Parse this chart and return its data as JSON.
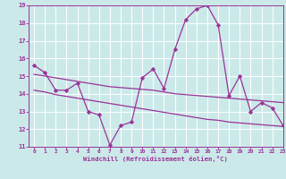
{
  "xlabel": "Windchill (Refroidissement éolien,°C)",
  "x": [
    0,
    1,
    2,
    3,
    4,
    5,
    6,
    7,
    8,
    9,
    10,
    11,
    12,
    13,
    14,
    15,
    16,
    17,
    18,
    19,
    20,
    21,
    22,
    23
  ],
  "line1": [
    15.6,
    15.2,
    14.2,
    14.2,
    14.6,
    13.0,
    12.8,
    11.1,
    12.2,
    12.4,
    14.9,
    15.4,
    14.3,
    16.5,
    18.2,
    18.8,
    19.0,
    17.9,
    13.9,
    15.0,
    13.0,
    13.5,
    13.2,
    12.2
  ],
  "line2": [
    15.1,
    15.0,
    14.9,
    14.8,
    14.7,
    14.6,
    14.5,
    14.4,
    14.35,
    14.3,
    14.25,
    14.2,
    14.1,
    14.0,
    13.95,
    13.9,
    13.85,
    13.8,
    13.75,
    13.7,
    13.65,
    13.6,
    13.55,
    13.5
  ],
  "line3": [
    14.2,
    14.1,
    13.95,
    13.85,
    13.75,
    13.65,
    13.55,
    13.45,
    13.35,
    13.25,
    13.15,
    13.05,
    12.95,
    12.85,
    12.75,
    12.65,
    12.55,
    12.5,
    12.4,
    12.35,
    12.3,
    12.25,
    12.2,
    12.15
  ],
  "ylim": [
    11,
    19
  ],
  "xlim": [
    -0.5,
    23
  ],
  "yticks": [
    11,
    12,
    13,
    14,
    15,
    16,
    17,
    18,
    19
  ],
  "xticks": [
    0,
    1,
    2,
    3,
    4,
    5,
    6,
    7,
    8,
    9,
    10,
    11,
    12,
    13,
    14,
    15,
    16,
    17,
    18,
    19,
    20,
    21,
    22,
    23
  ],
  "bg_color": "#cce9e9",
  "line_color": "#993399",
  "grid_color": "#ffffff",
  "marker": "D",
  "marker_size": 2.2,
  "line_width": 0.9
}
